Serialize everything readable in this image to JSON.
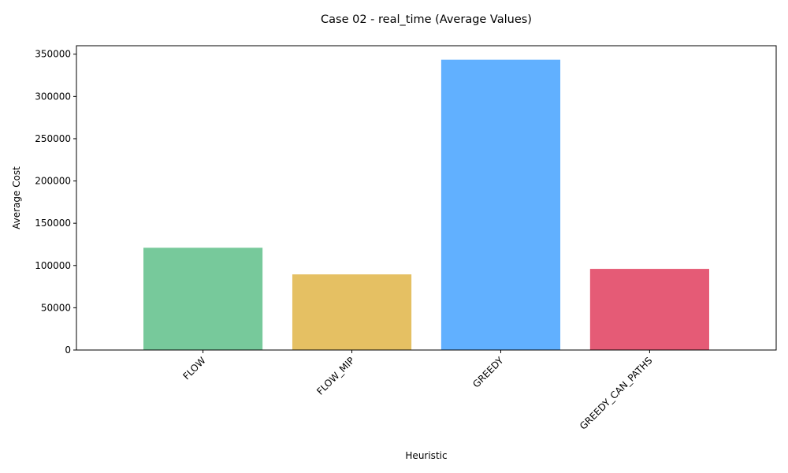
{
  "chart_data": {
    "type": "bar",
    "title": "Case 02 - real_time (Average Values)",
    "xlabel": "Heuristic",
    "ylabel": "Average Cost",
    "categories": [
      "FLOW",
      "FLOW_MIP",
      "GREEDY",
      "GREEDY_CAN_PATHS"
    ],
    "values": [
      121000,
      89500,
      343500,
      96000
    ],
    "colors": [
      "#77c99b",
      "#e5c063",
      "#61b0ff",
      "#e55b76"
    ],
    "ylim": [
      0,
      360000
    ],
    "yticks": [
      0,
      50000,
      100000,
      150000,
      200000,
      250000,
      300000,
      350000
    ],
    "grid": false,
    "legend": "none"
  }
}
